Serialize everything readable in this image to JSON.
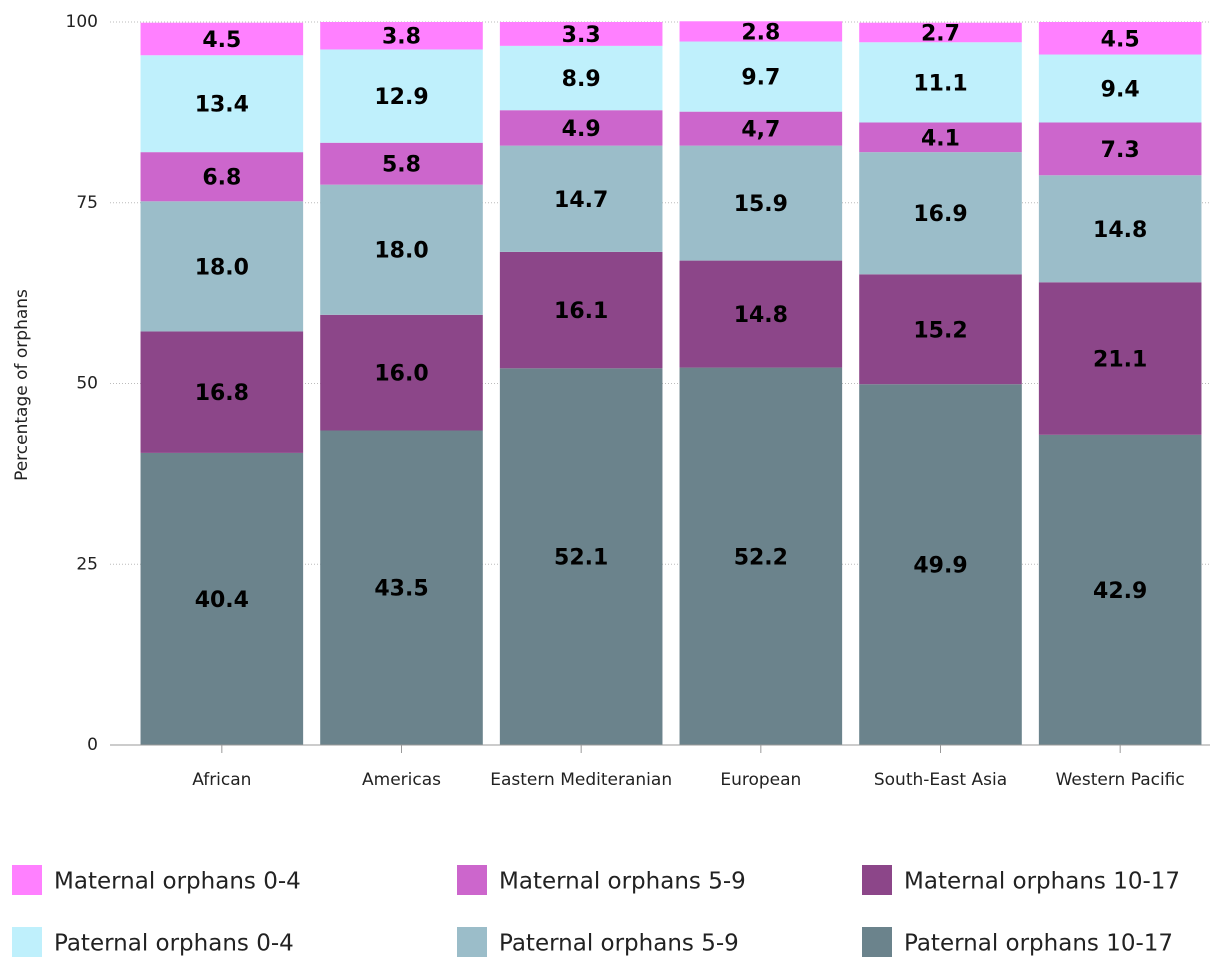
{
  "chart_data": {
    "type": "stacked_bar",
    "y_label": "Percentage of orphans",
    "categories": [
      "African",
      "Americas",
      "Eastern Mediteranian",
      "European",
      "South-East Asia",
      "Western Pacific"
    ],
    "series": [
      {
        "name": "Maternal orphans 0-4",
        "color": "#ff80ff",
        "values": [
          4.5,
          3.8,
          3.3,
          2.8,
          2.7,
          4.5
        ],
        "value_labels": [
          "4.5",
          "3.8",
          "3.3",
          "2.8",
          "2.7",
          "4.5"
        ]
      },
      {
        "name": "Maternal orphans 5-9",
        "color": "#cc66cc",
        "values": [
          6.8,
          5.8,
          4.9,
          4.7,
          4.1,
          7.3
        ],
        "value_labels": [
          "6.8",
          "5.8",
          "4.9",
          "4,7",
          "4.1",
          "7.3"
        ]
      },
      {
        "name": "Maternal orphans 10-17",
        "color": "#8c4689",
        "values": [
          16.8,
          16.0,
          16.1,
          14.8,
          15.2,
          21.1
        ],
        "value_labels": [
          "16.8",
          "16.0",
          "16.1",
          "14.8",
          "15.2",
          "21.1"
        ]
      },
      {
        "name": "Paternal orphans 0-4",
        "color": "#bff0fc",
        "values": [
          13.4,
          12.9,
          8.9,
          9.7,
          11.1,
          9.4
        ],
        "value_labels": [
          "13.4",
          "12.9",
          "8.9",
          "9.7",
          "11.1",
          "9.4"
        ]
      },
      {
        "name": "Paternal orphans 5-9",
        "color": "#9bbdc9",
        "values": [
          18.0,
          18.0,
          14.7,
          15.9,
          16.9,
          14.8
        ],
        "value_labels": [
          "18.0",
          "18.0",
          "14.7",
          "15.9",
          "16.9",
          "14.8"
        ]
      },
      {
        "name": "Paternal orphans 10-17",
        "color": "#6b838c",
        "values": [
          40.4,
          43.5,
          52.1,
          52.2,
          49.9,
          42.9
        ],
        "value_labels": [
          "40.4",
          "43.5",
          "52.1",
          "52.2",
          "49.9",
          "42.9"
        ]
      }
    ],
    "ylim": [
      0,
      100
    ],
    "yticks": [
      0,
      25,
      50,
      75,
      100
    ],
    "grid": true
  }
}
